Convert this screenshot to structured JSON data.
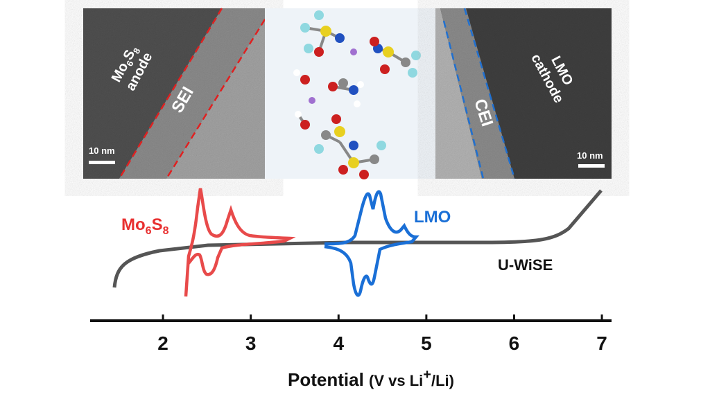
{
  "figure": {
    "left_panel": {
      "material": [
        "Mo",
        "6",
        "S",
        "8"
      ],
      "role": "anode",
      "layer": "SEI",
      "scale_bar": "10 nm"
    },
    "right_panel": {
      "material": "LMO",
      "role": "cathode",
      "layer": "CEI",
      "scale_bar": "10 nm"
    },
    "curve_labels": {
      "anode": [
        "Mo",
        "6",
        "S",
        "8"
      ],
      "cathode": "LMO",
      "electrolyte": "U-WiSE"
    },
    "axis": {
      "label": [
        "Potential ",
        "(V vs Li",
        "+",
        "/Li)"
      ],
      "xlim": [
        1.17,
        7.11
      ],
      "xticks": [
        2,
        3,
        4,
        5,
        6,
        7
      ]
    }
  }
}
